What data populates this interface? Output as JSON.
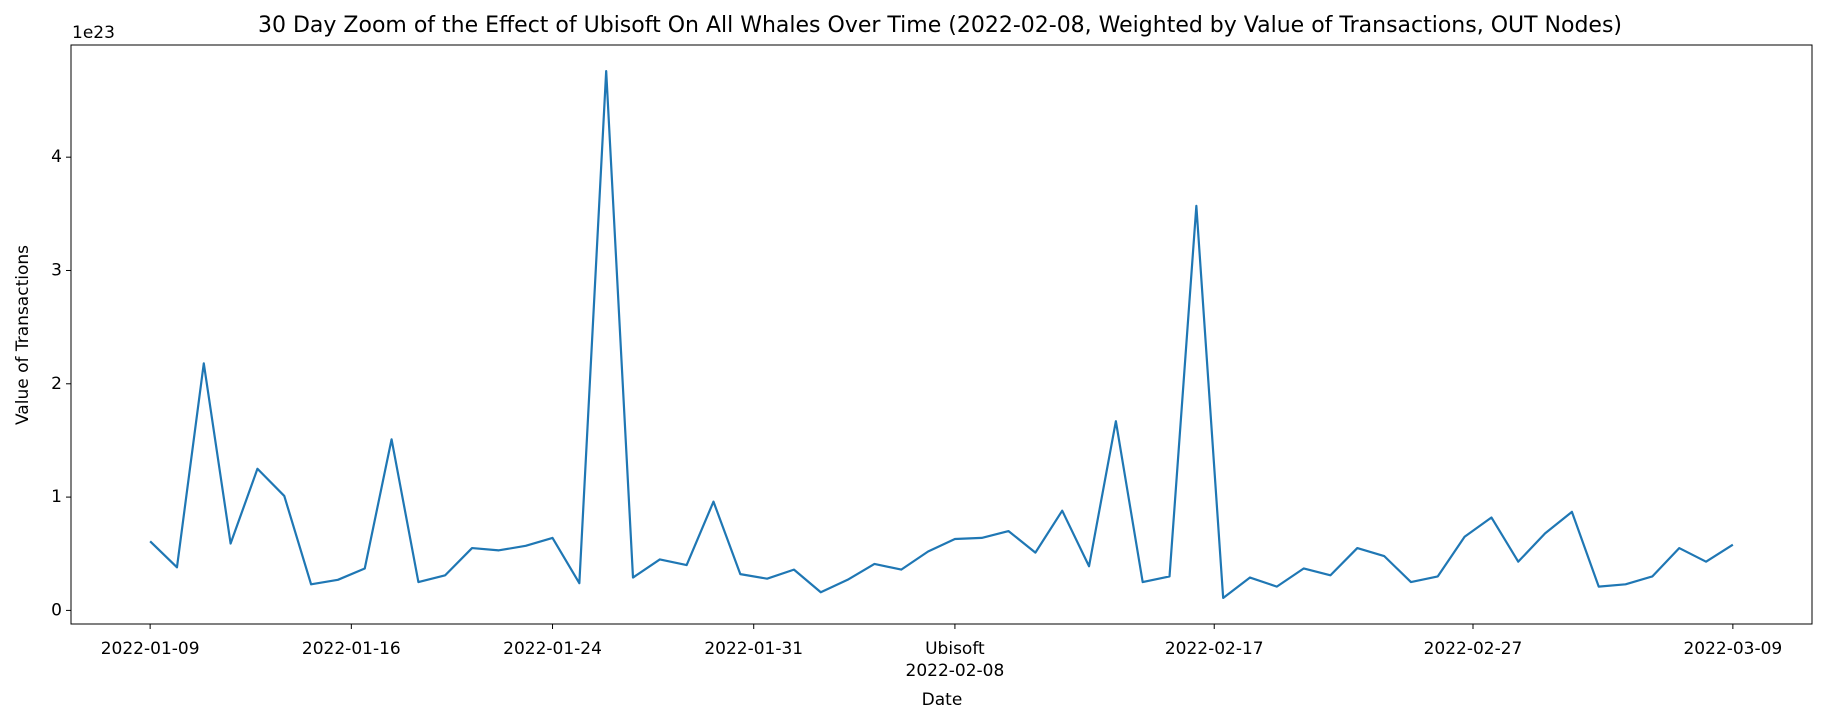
{
  "chart_data": {
    "type": "line",
    "title": "30 Day Zoom of the Effect of Ubisoft On All Whales Over Time (2022-02-08, Weighted by Value of Transactions, OUT Nodes)",
    "x_label": "Date",
    "y_label": "Value of Transactions",
    "y_offset_label": "1e23",
    "x": [
      "2022-01-09",
      "2022-01-10",
      "2022-01-11",
      "2022-01-12",
      "2022-01-13",
      "2022-01-14",
      "2022-01-15",
      "2022-01-16",
      "2022-01-17",
      "2022-01-18",
      "2022-01-19",
      "2022-01-20",
      "2022-01-21",
      "2022-01-22",
      "2022-01-23",
      "2022-01-24",
      "2022-01-25",
      "2022-01-26",
      "2022-01-27",
      "2022-01-28",
      "2022-01-29",
      "2022-01-30",
      "2022-01-31",
      "2022-02-01",
      "2022-02-02",
      "2022-02-03",
      "2022-02-04",
      "2022-02-05",
      "2022-02-06",
      "2022-02-07",
      "2022-02-08",
      "2022-02-09",
      "2022-02-10",
      "2022-02-11",
      "2022-02-12",
      "2022-02-13",
      "2022-02-14",
      "2022-02-15",
      "2022-02-16",
      "2022-02-17",
      "2022-02-18",
      "2022-02-19",
      "2022-02-20",
      "2022-02-21",
      "2022-02-22",
      "2022-02-23",
      "2022-02-24",
      "2022-02-25",
      "2022-02-26",
      "2022-02-27",
      "2022-02-28",
      "2022-03-01",
      "2022-03-02",
      "2022-03-03",
      "2022-03-04",
      "2022-03-05",
      "2022-03-06",
      "2022-03-07",
      "2022-03-08",
      "2022-03-09"
    ],
    "series": [
      {
        "name": "Value of Transactions",
        "color": "#1f77b4",
        "values": [
          0.61,
          0.38,
          2.18,
          0.59,
          1.25,
          1.01,
          0.23,
          0.27,
          0.37,
          1.51,
          0.25,
          0.31,
          0.55,
          0.53,
          0.57,
          0.64,
          0.24,
          4.76,
          0.29,
          0.45,
          0.4,
          0.96,
          0.32,
          0.28,
          0.36,
          0.16,
          0.27,
          0.41,
          0.36,
          0.52,
          0.63,
          0.64,
          0.7,
          0.51,
          0.88,
          0.39,
          1.67,
          0.25,
          0.3,
          3.57,
          0.11,
          0.29,
          0.21,
          0.37,
          0.31,
          0.55,
          0.48,
          0.25,
          0.3,
          0.65,
          0.82,
          0.43,
          0.68,
          0.87,
          0.21,
          0.23,
          0.3,
          0.55,
          0.43,
          0.58
        ]
      }
    ],
    "xlim": [
      "2022-01-06T01:12",
      "2022-03-11T22:48"
    ],
    "xticks": [
      {
        "value": "2022-01-09",
        "label": "2022-01-09"
      },
      {
        "value": "2022-01-16T12:00",
        "label": "2022-01-16"
      },
      {
        "value": "2022-01-24",
        "label": "2022-01-24"
      },
      {
        "value": "2022-01-31T12:00",
        "label": "2022-01-31"
      },
      {
        "value": "2022-02-08",
        "label": "Ubisoft\n2022-02-08"
      },
      {
        "value": "2022-02-17T16:00",
        "label": "2022-02-17"
      },
      {
        "value": "2022-02-27T07:30",
        "label": "2022-02-27"
      },
      {
        "value": "2022-03-09",
        "label": "2022-03-09"
      }
    ],
    "ylim": [
      -0.12,
      4.99
    ],
    "yticks": [
      0,
      1,
      2,
      3,
      4
    ],
    "grid": false
  }
}
